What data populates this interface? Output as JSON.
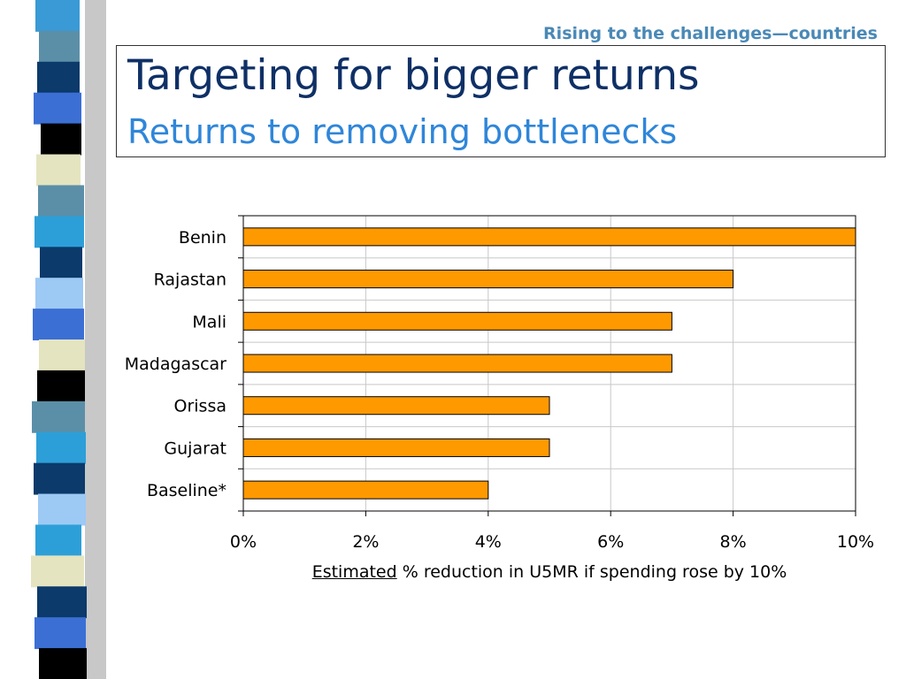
{
  "header": {
    "section": "Rising to the challenges—countries",
    "title": "Targeting for bigger returns",
    "subtitle": "Returns to removing bottlenecks"
  },
  "decor": {
    "strip_colors": [
      "#3a9ad6",
      "#5b8fa8",
      "#0b3a6b",
      "#3b6fd4",
      "#000000",
      "#e4e4c0",
      "#5b8fa8",
      "#2d9fd8",
      "#0b3a6b",
      "#9dc9f5",
      "#3b6fd4",
      "#e4e4c0",
      "#000000",
      "#5b8fa8",
      "#2d9fd8",
      "#0b3a6b",
      "#9dc9f5",
      "#2d9fd8",
      "#e4e4c0",
      "#0b3a6b",
      "#3b6fd4",
      "#000000"
    ]
  },
  "chart_data": {
    "type": "bar",
    "orientation": "horizontal",
    "categories": [
      "Benin",
      "Rajastan",
      "Mali",
      "Madagascar",
      "Orissa",
      "Gujarat",
      "Baseline*"
    ],
    "values": [
      10,
      8,
      7,
      7,
      5,
      5,
      4
    ],
    "xlim": [
      0,
      10
    ],
    "xticks": [
      "0%",
      "2%",
      "4%",
      "6%",
      "8%",
      "10%"
    ],
    "xlabel_emphasis": "Estimated",
    "xlabel_rest": " % reduction in U5MR if spending rose by 10%",
    "grid": true,
    "bar_color": "#ff9900"
  }
}
